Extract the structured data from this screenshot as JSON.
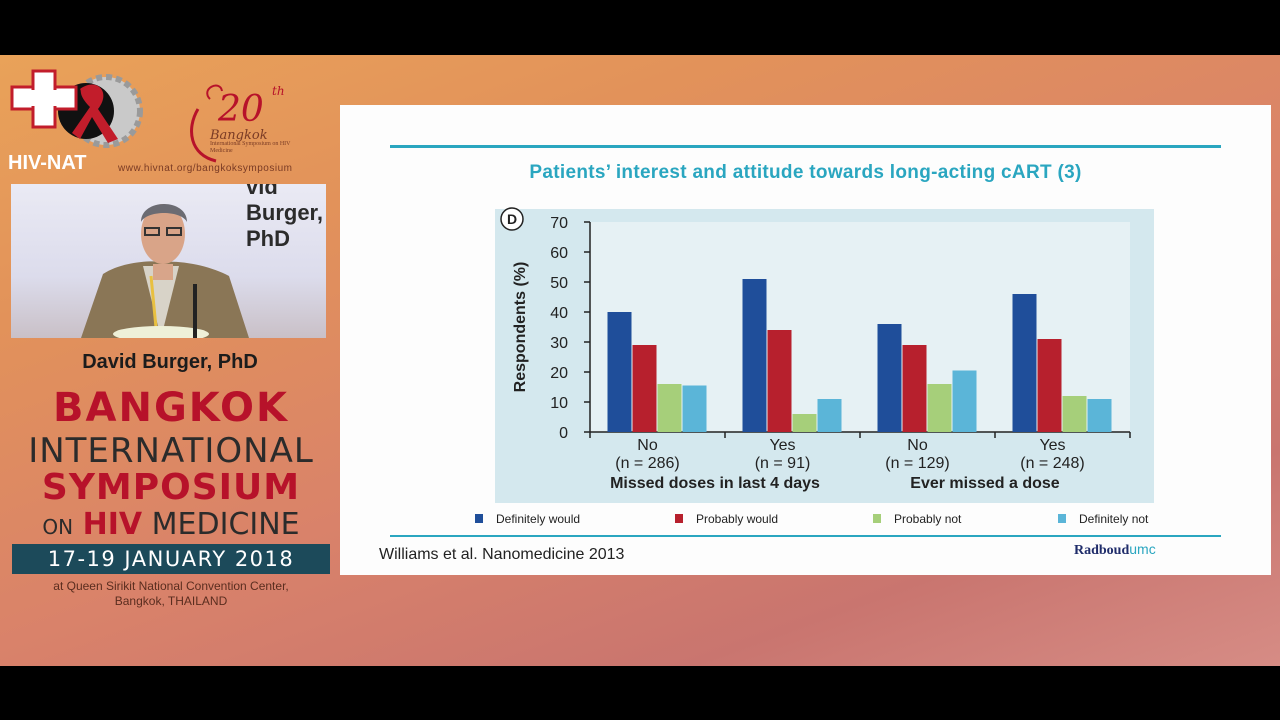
{
  "logos": {
    "hivnat": "HIV-NAT",
    "website": "www.hivnat.org/bangkoksymposium",
    "anniversary_number": "20",
    "anniversary_suffix": "th",
    "anniversary_city": "Bangkok",
    "anniversary_subtitle": "International Symposium on HIV Medicine"
  },
  "video": {
    "overlay_text": "vid Burger, PhD"
  },
  "speaker": {
    "name": "David Burger, PhD"
  },
  "symposium": {
    "line1": "BANGKOK",
    "line2": "INTERNATIONAL",
    "line3": "SYMPOSIUM",
    "line4_on": "ON",
    "line4_hiv": "HIV",
    "line4_medicine": "MEDICINE",
    "dates": "17-19 JANUARY 2018",
    "venue_line1": "at Queen Sirikit National Convention Center,",
    "venue_line2": "Bangkok, THAILAND"
  },
  "slide": {
    "title": "Patients’ interest and attitude towards long-acting cART (3)",
    "citation": "Williams et al. Nanomedicine 2013",
    "brand_main": "Radboud",
    "brand_suffix": "umc"
  },
  "colors": {
    "accent": "#2aa6c0",
    "definitely_would": "#1f4e9a",
    "probably_would": "#b7202d",
    "probably_not": "#a6cf7a",
    "definitely_not": "#5bb5d8",
    "chart_bg": "#d4e8ee",
    "brand_red": "#b7122a",
    "date_bar": "#1c4a5a"
  },
  "chart_data": {
    "type": "bar",
    "panel_label": "D",
    "ylabel": "Respondents (%)",
    "ylim": [
      0,
      70
    ],
    "yticks": [
      0,
      10,
      20,
      30,
      40,
      50,
      60,
      70
    ],
    "categories": [
      {
        "line1": "No",
        "line2": "(n = 286)"
      },
      {
        "line1": "Yes",
        "line2": "(n = 91)"
      },
      {
        "line1": "No",
        "line2": "(n = 129)"
      },
      {
        "line1": "Yes",
        "line2": "(n = 248)"
      }
    ],
    "groups": [
      "Missed doses in last 4 days",
      "Ever missed a dose"
    ],
    "series": [
      {
        "name": "Definitely would",
        "values": [
          40,
          51,
          36,
          46
        ]
      },
      {
        "name": "Probably would",
        "values": [
          29,
          34,
          29,
          31
        ]
      },
      {
        "name": "Probably not",
        "values": [
          16,
          6,
          16,
          12
        ]
      },
      {
        "name": "Definitely not",
        "values": [
          15.5,
          11,
          20.5,
          11
        ]
      }
    ],
    "legend_position": "bottom"
  }
}
